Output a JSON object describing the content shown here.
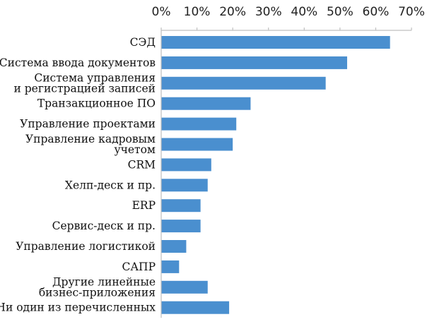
{
  "chart_data": {
    "type": "bar",
    "orientation": "horizontal",
    "categories": [
      [
        "СЭД"
      ],
      [
        "Система ввода документов"
      ],
      [
        "Система управления",
        "и регистрацией записей"
      ],
      [
        "Транзакционное ПО"
      ],
      [
        "Управление проектами"
      ],
      [
        "Управление кадровым",
        "учетом"
      ],
      [
        "CRM"
      ],
      [
        "Хелп-деск и пр."
      ],
      [
        "ERP"
      ],
      [
        "Сервис-деск и пр."
      ],
      [
        "Управление логистикой"
      ],
      [
        "САПР"
      ],
      [
        "Другие линейные",
        "бизнес-приложения"
      ],
      [
        "Ни один из перечисленных"
      ]
    ],
    "values": [
      64,
      52,
      46,
      25,
      21,
      20,
      14,
      13,
      11,
      11,
      7,
      5,
      13,
      19
    ],
    "xlim": [
      0,
      70
    ],
    "x_ticks": [
      "0%",
      "10%",
      "20%",
      "30%",
      "40%",
      "50%",
      "60%",
      "70%"
    ],
    "x_axis_position": "top",
    "bar_color": "#4a8fcf",
    "grid": false,
    "legend": "none",
    "title": "",
    "xlabel": "",
    "ylabel": ""
  }
}
